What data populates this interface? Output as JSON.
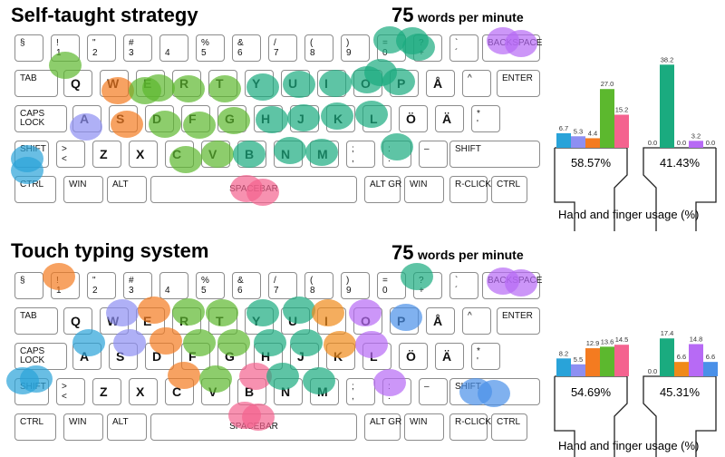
{
  "panels": [
    {
      "title": "Self-taught strategy",
      "wpm_value": "75",
      "wpm_unit": "words per minute",
      "left_hand_pct": "58.57%",
      "right_hand_pct": "41.43%",
      "caption": "Hand and finger usage (%)"
    },
    {
      "title": "Touch typing system",
      "wpm_value": "75",
      "wpm_unit": "words per minute",
      "left_hand_pct": "54.69%",
      "right_hand_pct": "45.31%",
      "caption": "Hand and finger usage (%)"
    }
  ],
  "keyboard": {
    "rows": [
      [
        [
          "§",
          ""
        ],
        [
          "!",
          "1"
        ],
        [
          "\"",
          "2"
        ],
        [
          "#",
          "3"
        ],
        [
          "",
          "4"
        ],
        [
          "%",
          "5"
        ],
        [
          "&",
          "6"
        ],
        [
          "/",
          "7"
        ],
        [
          "(",
          "8"
        ],
        [
          ")",
          "9"
        ],
        [
          "=",
          "0"
        ],
        [
          "?",
          "+"
        ],
        [
          "`",
          "´"
        ],
        [
          "BACKSPACE",
          ""
        ]
      ],
      [
        [
          "TAB",
          ""
        ],
        [
          "Q",
          ""
        ],
        [
          "W",
          ""
        ],
        [
          "E",
          ""
        ],
        [
          "R",
          ""
        ],
        [
          "T",
          ""
        ],
        [
          "Y",
          ""
        ],
        [
          "U",
          ""
        ],
        [
          "I",
          ""
        ],
        [
          "O",
          ""
        ],
        [
          "P",
          ""
        ],
        [
          "Å",
          ""
        ],
        [
          "^",
          ""
        ],
        [
          "ENTER",
          ""
        ]
      ],
      [
        [
          "CAPS",
          "LOCK"
        ],
        [
          "A",
          ""
        ],
        [
          "S",
          ""
        ],
        [
          "D",
          ""
        ],
        [
          "F",
          ""
        ],
        [
          "G",
          ""
        ],
        [
          "H",
          ""
        ],
        [
          "J",
          ""
        ],
        [
          "K",
          ""
        ],
        [
          "L",
          ""
        ],
        [
          "Ö",
          ""
        ],
        [
          "Ä",
          ""
        ],
        [
          "*",
          "'"
        ]
      ],
      [
        [
          "SHIFT",
          ""
        ],
        [
          ">",
          "<"
        ],
        [
          "Z",
          ""
        ],
        [
          "X",
          ""
        ],
        [
          "C",
          ""
        ],
        [
          "V",
          ""
        ],
        [
          "B",
          ""
        ],
        [
          "N",
          ""
        ],
        [
          "M",
          ""
        ],
        [
          ";",
          ","
        ],
        [
          ":",
          "."
        ],
        [
          "–",
          ""
        ],
        [
          "SHIFT",
          ""
        ]
      ],
      [
        [
          "CTRL",
          ""
        ],
        [
          "WIN",
          ""
        ],
        [
          "ALT",
          ""
        ],
        [
          "SPACEBAR",
          ""
        ],
        [
          "ALT GR",
          ""
        ],
        [
          "WIN",
          ""
        ],
        [
          "R-CLICK",
          ""
        ],
        [
          "CTRL",
          ""
        ]
      ]
    ]
  },
  "finger_colors": {
    "left_pinky": "#29a3d9",
    "left_ring": "#8d8ff2",
    "left_middle": "#f47b20",
    "left_index": "#5cb82e",
    "thumb": "#f4638f",
    "right_index": "#1aab7f",
    "right_middle": "#f08a1a",
    "right_ring": "#b76af5",
    "right_pinky": "#4a90e8"
  },
  "chart_data": [
    {
      "type": "bar",
      "title": "Hand and finger usage (%)",
      "groups": [
        {
          "hand": "left",
          "values": [
            6.7,
            5.3,
            4.4,
            27.0,
            15.2
          ],
          "fingers": [
            "pinky",
            "ring",
            "middle",
            "index",
            "thumb"
          ]
        },
        {
          "hand": "right",
          "values": [
            0.0,
            38.2,
            0.0,
            3.2,
            0.0
          ],
          "fingers": [
            "thumb",
            "index",
            "middle",
            "ring",
            "pinky"
          ]
        }
      ],
      "labels": [
        "6.7",
        "5.3",
        "4.4",
        "27.0",
        "15.2",
        "0.0",
        "38.2",
        "0.0",
        "3.2",
        "0.0"
      ]
    },
    {
      "type": "bar",
      "title": "Hand and finger usage (%)",
      "groups": [
        {
          "hand": "left",
          "values": [
            8.2,
            5.5,
            12.9,
            13.6,
            14.5
          ],
          "fingers": [
            "pinky",
            "ring",
            "middle",
            "index",
            "thumb"
          ]
        },
        {
          "hand": "right",
          "values": [
            0.0,
            17.4,
            6.6,
            14.8,
            6.6
          ],
          "fingers": [
            "thumb",
            "index",
            "middle",
            "ring",
            "pinky"
          ]
        }
      ],
      "labels": [
        "8.2",
        "5.5",
        "12.9",
        "13.6",
        "14.5",
        "0.0",
        "17.4",
        "6.6",
        "14.8",
        "6.6"
      ]
    }
  ]
}
